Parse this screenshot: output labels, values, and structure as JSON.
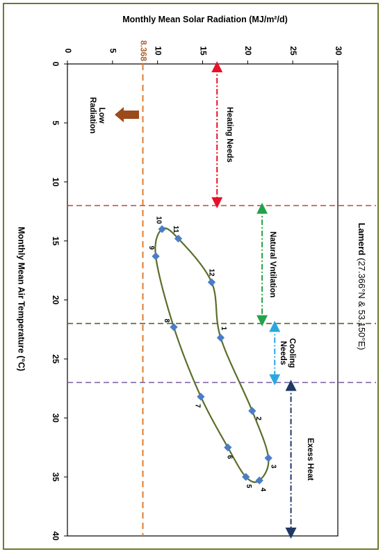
{
  "chart_data": {
    "type": "line",
    "title": "Lamerd",
    "title_coords": "(27.366°N & 53.150°E)",
    "xlabel": "Monthly Mean Air Temperature (°C)",
    "ylabel": "Monthly Mean Solar Radiation (MJ/m²/d)",
    "xlim": [
      0,
      40
    ],
    "ylim": [
      0,
      30
    ],
    "x_ticks": [
      "0",
      "5",
      "10",
      "15",
      "20",
      "25",
      "30",
      "35",
      "40"
    ],
    "y_ticks": [
      "0",
      "5",
      "10",
      "15",
      "20",
      "25",
      "30"
    ],
    "grid": false,
    "orientation": "rotated 90° clockwise",
    "series": [
      {
        "name": "",
        "color": "#5a6e2a",
        "marker_color": "#4a7cc9",
        "months": [
          "1",
          "2",
          "3",
          "4",
          "5",
          "6",
          "7",
          "8",
          "9",
          "10",
          "11",
          "12"
        ],
        "x": [
          23.2,
          29.4,
          33.4,
          35.3,
          35.0,
          32.5,
          28.2,
          22.3,
          16.3,
          14.0,
          14.8,
          18.5
        ],
        "y": [
          17.0,
          20.5,
          22.3,
          21.3,
          19.8,
          17.8,
          14.8,
          11.8,
          9.8,
          10.5,
          12.3,
          16.0
        ]
      }
    ],
    "reference_lines": [
      {
        "axis": "y",
        "value": 8.368,
        "label": "8.368",
        "color": "#e07b2e"
      },
      {
        "axis": "x",
        "value": 12,
        "color": "#c0504d"
      },
      {
        "axis": "x",
        "value": 22,
        "color": "#4f6228"
      },
      {
        "axis": "x",
        "value": 27,
        "color": "#8064a2"
      }
    ],
    "zones": [
      {
        "label": "Heating Needs",
        "from": 0,
        "to": 12,
        "color": "#e8102a"
      },
      {
        "label": "Natural  Vntilation",
        "from": 12,
        "to": 22,
        "color": "#21a34a"
      },
      {
        "label": "Cooling Needs",
        "from": 22,
        "to": 27,
        "color": "#29a8e0"
      },
      {
        "label": "Exess Heat",
        "from": 27,
        "to": 40,
        "color": "#1f3864"
      }
    ],
    "annotations": [
      {
        "label": "Low Radiation",
        "color": "#9b4a1c"
      }
    ]
  }
}
